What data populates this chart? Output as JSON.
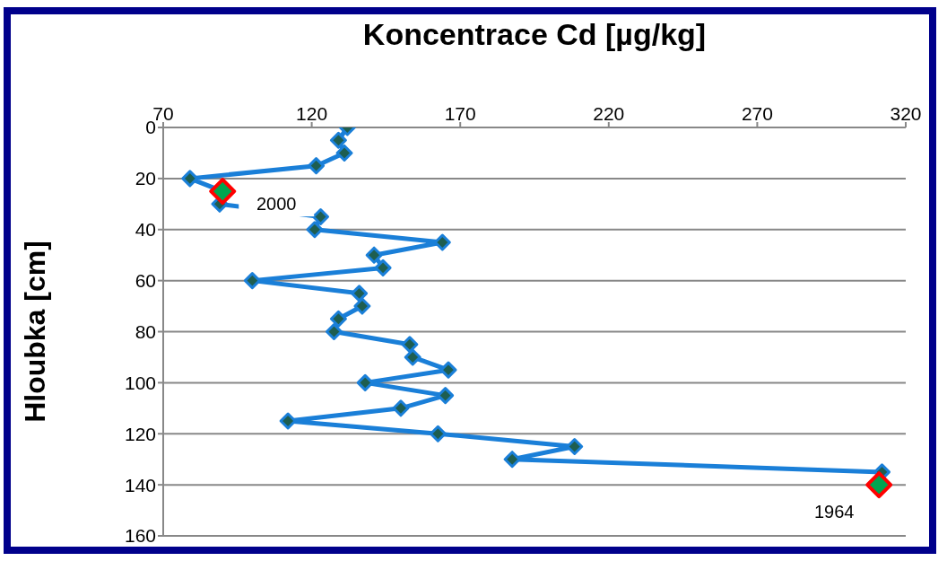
{
  "chart_data": {
    "type": "line",
    "xlabel": "Koncentrace Cd [µg/kg]",
    "ylabel": "Hloubka [cm]",
    "xlim": [
      70,
      320
    ],
    "xticks": [
      70,
      120,
      170,
      220,
      270,
      320
    ],
    "ylim": [
      160,
      0
    ],
    "yticks": [
      0,
      20,
      40,
      60,
      80,
      100,
      120,
      140,
      160
    ],
    "grid": "y",
    "series": [
      {
        "color": "#1a7fd8",
        "marker": "diamond",
        "x": [
          132,
          129,
          131,
          121.5,
          79,
          90,
          89,
          123,
          121,
          164,
          141,
          144,
          100,
          136,
          137,
          129,
          127.5,
          153,
          154,
          166,
          138,
          165,
          150,
          112,
          162.5,
          208.5,
          187.5,
          312
        ],
        "values": [
          0,
          5,
          10,
          15,
          20,
          25,
          30,
          35,
          40,
          45,
          50,
          55,
          60,
          65,
          70,
          75,
          80,
          85,
          90,
          95,
          100,
          105,
          110,
          115,
          120,
          125,
          130,
          135
        ]
      },
      {
        "type": "scatter",
        "color": "#00a550",
        "marker": "diamond",
        "x": [
          90,
          311
        ],
        "values": [
          25,
          140
        ]
      }
    ],
    "annotations": [
      {
        "text": "2000",
        "x": 90,
        "y": 25
      },
      {
        "text": "1964",
        "x": 311,
        "y": 140
      }
    ]
  }
}
